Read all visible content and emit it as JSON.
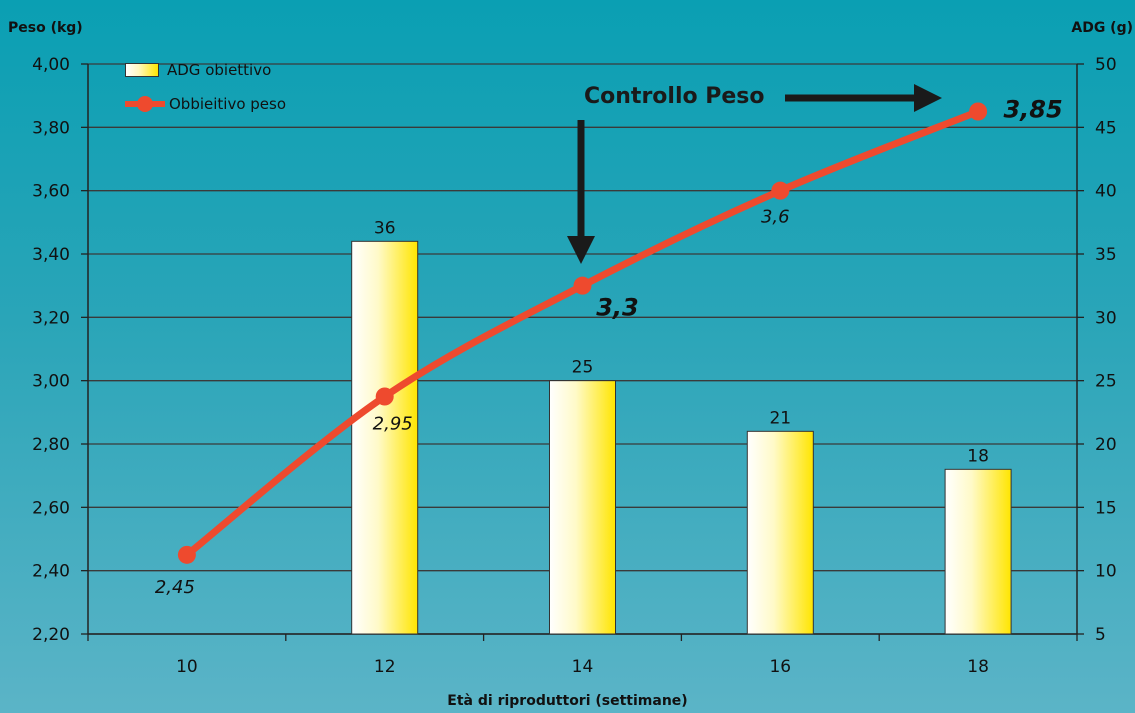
{
  "chart_data": {
    "type": "bar+line",
    "x_label": "Età di riproduttori (settimane)",
    "categories": [
      "10",
      "12",
      "14",
      "16",
      "18"
    ],
    "left_axis": {
      "title": "Peso (kg)",
      "range": [
        2.2,
        4.0
      ],
      "ticks": [
        "2,20",
        "2,40",
        "2,60",
        "2,80",
        "3,00",
        "3,20",
        "3,40",
        "3,60",
        "3,80",
        "4,00"
      ]
    },
    "right_axis": {
      "title": "ADG (g)",
      "range": [
        5,
        50
      ],
      "ticks": [
        "5",
        "10",
        "15",
        "20",
        "25",
        "30",
        "35",
        "40",
        "45",
        "50"
      ]
    },
    "series": [
      {
        "name": "ADG obiettivo",
        "type": "bar",
        "axis": "right",
        "values": [
          null,
          36,
          25,
          21,
          18
        ],
        "labels": [
          "",
          "36",
          "25",
          "21",
          "18"
        ]
      },
      {
        "name": "Obbieitivo peso",
        "type": "line",
        "axis": "left",
        "color": "#ee4a2e",
        "values": [
          2.45,
          2.95,
          3.3,
          3.6,
          3.85
        ],
        "labels": [
          "2,45",
          "2,95",
          "3,3",
          "3,6",
          "3,85"
        ]
      }
    ],
    "annotation": "Controllo Peso",
    "grid": true,
    "legend_position": "top-left"
  }
}
